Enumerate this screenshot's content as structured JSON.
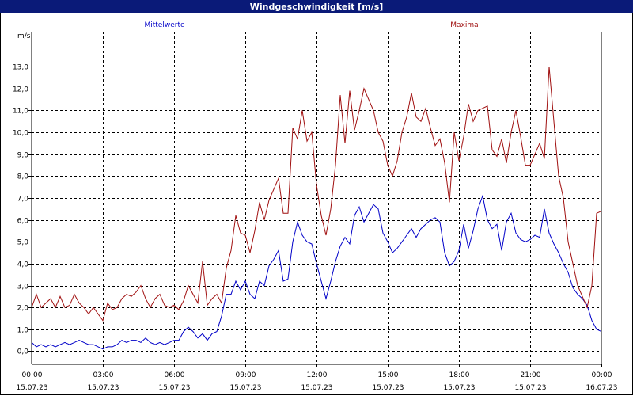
{
  "chart_data": {
    "type": "line",
    "title": "Windgeschwindigkeit [m/s]",
    "ylabel": "m/s",
    "ylim": [
      -0.6,
      14.6
    ],
    "xlim": [
      0,
      24
    ],
    "grid": true,
    "legend_position": "top",
    "y_ticks": [
      "0,0",
      "1,0",
      "2,0",
      "3,0",
      "4,0",
      "5,0",
      "6,0",
      "7,0",
      "8,0",
      "9,0",
      "10,0",
      "11,0",
      "12,0",
      "13,0"
    ],
    "y_tick_values": [
      0,
      1,
      2,
      3,
      4,
      5,
      6,
      7,
      8,
      9,
      10,
      11,
      12,
      13
    ],
    "x_ticks": [
      {
        "time": "00:00",
        "date": "15.07.23",
        "hour": 0
      },
      {
        "time": "03:00",
        "date": "15.07.23",
        "hour": 3
      },
      {
        "time": "06:00",
        "date": "15.07.23",
        "hour": 6
      },
      {
        "time": "09:00",
        "date": "15.07.23",
        "hour": 9
      },
      {
        "time": "12:00",
        "date": "15.07.23",
        "hour": 12
      },
      {
        "time": "15:00",
        "date": "15.07.23",
        "hour": 15
      },
      {
        "time": "18:00",
        "date": "15.07.23",
        "hour": 18
      },
      {
        "time": "21:00",
        "date": "15.07.23",
        "hour": 21
      },
      {
        "time": "00:00",
        "date": "16.07.23",
        "hour": 24
      }
    ],
    "series": [
      {
        "name": "Mittelwerte",
        "color": "#0000c8",
        "points": [
          [
            0.0,
            0.4
          ],
          [
            0.2,
            0.2
          ],
          [
            0.4,
            0.3
          ],
          [
            0.6,
            0.2
          ],
          [
            0.8,
            0.3
          ],
          [
            1.0,
            0.2
          ],
          [
            1.2,
            0.3
          ],
          [
            1.4,
            0.4
          ],
          [
            1.6,
            0.3
          ],
          [
            1.8,
            0.4
          ],
          [
            2.0,
            0.5
          ],
          [
            2.2,
            0.4
          ],
          [
            2.4,
            0.3
          ],
          [
            2.6,
            0.3
          ],
          [
            2.8,
            0.2
          ],
          [
            3.0,
            0.1
          ],
          [
            3.2,
            0.2
          ],
          [
            3.4,
            0.2
          ],
          [
            3.6,
            0.3
          ],
          [
            3.8,
            0.5
          ],
          [
            4.0,
            0.4
          ],
          [
            4.2,
            0.5
          ],
          [
            4.4,
            0.5
          ],
          [
            4.6,
            0.4
          ],
          [
            4.8,
            0.6
          ],
          [
            5.0,
            0.4
          ],
          [
            5.2,
            0.3
          ],
          [
            5.4,
            0.4
          ],
          [
            5.6,
            0.3
          ],
          [
            5.8,
            0.4
          ],
          [
            6.0,
            0.5
          ],
          [
            6.2,
            0.5
          ],
          [
            6.4,
            0.9
          ],
          [
            6.6,
            1.1
          ],
          [
            6.8,
            0.9
          ],
          [
            7.0,
            0.6
          ],
          [
            7.2,
            0.8
          ],
          [
            7.4,
            0.5
          ],
          [
            7.6,
            0.8
          ],
          [
            7.8,
            0.9
          ],
          [
            8.0,
            1.6
          ],
          [
            8.2,
            2.6
          ],
          [
            8.4,
            2.6
          ],
          [
            8.6,
            3.2
          ],
          [
            8.8,
            2.8
          ],
          [
            9.0,
            3.2
          ],
          [
            9.2,
            2.6
          ],
          [
            9.4,
            2.4
          ],
          [
            9.6,
            3.2
          ],
          [
            9.8,
            3.0
          ],
          [
            10.0,
            3.9
          ],
          [
            10.2,
            4.2
          ],
          [
            10.4,
            4.6
          ],
          [
            10.6,
            3.2
          ],
          [
            10.8,
            3.3
          ],
          [
            11.0,
            5.0
          ],
          [
            11.2,
            5.9
          ],
          [
            11.4,
            5.3
          ],
          [
            11.6,
            5.0
          ],
          [
            11.8,
            4.9
          ],
          [
            12.0,
            4.0
          ],
          [
            12.2,
            3.2
          ],
          [
            12.4,
            2.4
          ],
          [
            12.6,
            3.2
          ],
          [
            12.8,
            4.1
          ],
          [
            13.0,
            4.8
          ],
          [
            13.2,
            5.2
          ],
          [
            13.4,
            4.9
          ],
          [
            13.6,
            6.2
          ],
          [
            13.8,
            6.6
          ],
          [
            14.0,
            5.9
          ],
          [
            14.2,
            6.3
          ],
          [
            14.4,
            6.7
          ],
          [
            14.6,
            6.5
          ],
          [
            14.8,
            5.4
          ],
          [
            15.0,
            5.0
          ],
          [
            15.2,
            4.5
          ],
          [
            15.4,
            4.7
          ],
          [
            15.6,
            5.0
          ],
          [
            15.8,
            5.3
          ],
          [
            16.0,
            5.6
          ],
          [
            16.2,
            5.2
          ],
          [
            16.4,
            5.6
          ],
          [
            16.6,
            5.8
          ],
          [
            16.8,
            6.0
          ],
          [
            17.0,
            6.1
          ],
          [
            17.2,
            5.9
          ],
          [
            17.4,
            4.5
          ],
          [
            17.6,
            3.9
          ],
          [
            17.8,
            4.1
          ],
          [
            18.0,
            4.6
          ],
          [
            18.2,
            5.8
          ],
          [
            18.4,
            4.7
          ],
          [
            18.6,
            5.5
          ],
          [
            18.8,
            6.5
          ],
          [
            19.0,
            7.1
          ],
          [
            19.2,
            6.0
          ],
          [
            19.4,
            5.6
          ],
          [
            19.6,
            5.8
          ],
          [
            19.8,
            4.6
          ],
          [
            20.0,
            5.9
          ],
          [
            20.2,
            6.3
          ],
          [
            20.4,
            5.4
          ],
          [
            20.6,
            5.1
          ],
          [
            20.8,
            5.0
          ],
          [
            21.0,
            5.1
          ],
          [
            21.2,
            5.3
          ],
          [
            21.4,
            5.2
          ],
          [
            21.6,
            6.5
          ],
          [
            21.8,
            5.4
          ],
          [
            22.0,
            4.9
          ],
          [
            22.2,
            4.5
          ],
          [
            22.4,
            4.0
          ],
          [
            22.6,
            3.6
          ],
          [
            22.8,
            2.9
          ],
          [
            23.0,
            2.6
          ],
          [
            23.2,
            2.4
          ],
          [
            23.4,
            2.1
          ],
          [
            23.6,
            1.4
          ],
          [
            23.8,
            1.0
          ],
          [
            24.0,
            0.9
          ]
        ]
      },
      {
        "name": "Maxima",
        "color": "#a01010",
        "points": [
          [
            0.0,
            2.0
          ],
          [
            0.2,
            2.6
          ],
          [
            0.4,
            2.0
          ],
          [
            0.6,
            2.2
          ],
          [
            0.8,
            2.4
          ],
          [
            1.0,
            2.0
          ],
          [
            1.2,
            2.5
          ],
          [
            1.4,
            2.0
          ],
          [
            1.6,
            2.1
          ],
          [
            1.8,
            2.6
          ],
          [
            2.0,
            2.2
          ],
          [
            2.2,
            2.0
          ],
          [
            2.4,
            1.7
          ],
          [
            2.6,
            2.0
          ],
          [
            2.8,
            1.7
          ],
          [
            3.0,
            1.4
          ],
          [
            3.2,
            2.2
          ],
          [
            3.4,
            1.9
          ],
          [
            3.6,
            2.0
          ],
          [
            3.8,
            2.4
          ],
          [
            4.0,
            2.6
          ],
          [
            4.2,
            2.5
          ],
          [
            4.4,
            2.7
          ],
          [
            4.6,
            3.0
          ],
          [
            4.8,
            2.4
          ],
          [
            5.0,
            2.0
          ],
          [
            5.2,
            2.4
          ],
          [
            5.4,
            2.6
          ],
          [
            5.6,
            2.1
          ],
          [
            5.8,
            2.0
          ],
          [
            6.0,
            2.1
          ],
          [
            6.2,
            1.9
          ],
          [
            6.4,
            2.3
          ],
          [
            6.6,
            3.0
          ],
          [
            6.8,
            2.6
          ],
          [
            7.0,
            2.2
          ],
          [
            7.2,
            4.1
          ],
          [
            7.4,
            2.1
          ],
          [
            7.6,
            2.4
          ],
          [
            7.8,
            2.6
          ],
          [
            8.0,
            2.2
          ],
          [
            8.2,
            3.8
          ],
          [
            8.4,
            4.6
          ],
          [
            8.6,
            6.2
          ],
          [
            8.8,
            5.4
          ],
          [
            9.0,
            5.3
          ],
          [
            9.2,
            4.5
          ],
          [
            9.4,
            5.5
          ],
          [
            9.6,
            6.8
          ],
          [
            9.8,
            6.0
          ],
          [
            10.0,
            6.9
          ],
          [
            10.2,
            7.4
          ],
          [
            10.4,
            7.9
          ],
          [
            10.6,
            6.3
          ],
          [
            10.8,
            6.3
          ],
          [
            11.0,
            10.2
          ],
          [
            11.2,
            9.7
          ],
          [
            11.4,
            11.0
          ],
          [
            11.6,
            9.6
          ],
          [
            11.8,
            10.0
          ],
          [
            12.0,
            7.6
          ],
          [
            12.2,
            6.2
          ],
          [
            12.4,
            5.3
          ],
          [
            12.6,
            6.5
          ],
          [
            12.8,
            8.5
          ],
          [
            13.0,
            11.7
          ],
          [
            13.2,
            9.5
          ],
          [
            13.4,
            11.9
          ],
          [
            13.6,
            10.1
          ],
          [
            13.8,
            11.0
          ],
          [
            14.0,
            12.0
          ],
          [
            14.2,
            11.5
          ],
          [
            14.4,
            11.0
          ],
          [
            14.6,
            10.0
          ],
          [
            14.8,
            9.6
          ],
          [
            15.0,
            8.5
          ],
          [
            15.2,
            8.0
          ],
          [
            15.4,
            8.7
          ],
          [
            15.6,
            10.0
          ],
          [
            15.8,
            10.7
          ],
          [
            16.0,
            11.8
          ],
          [
            16.2,
            10.7
          ],
          [
            16.4,
            10.5
          ],
          [
            16.6,
            11.1
          ],
          [
            16.8,
            10.2
          ],
          [
            17.0,
            9.4
          ],
          [
            17.2,
            9.7
          ],
          [
            17.4,
            8.6
          ],
          [
            17.6,
            6.8
          ],
          [
            17.8,
            10.0
          ],
          [
            18.0,
            8.7
          ],
          [
            18.2,
            9.8
          ],
          [
            18.4,
            11.3
          ],
          [
            18.6,
            10.5
          ],
          [
            18.8,
            11.0
          ],
          [
            19.0,
            11.1
          ],
          [
            19.2,
            11.2
          ],
          [
            19.4,
            9.2
          ],
          [
            19.6,
            8.9
          ],
          [
            19.8,
            9.7
          ],
          [
            20.0,
            8.6
          ],
          [
            20.2,
            10.0
          ],
          [
            20.4,
            11.0
          ],
          [
            20.6,
            9.8
          ],
          [
            20.8,
            8.5
          ],
          [
            21.0,
            8.5
          ],
          [
            21.2,
            9.0
          ],
          [
            21.4,
            9.5
          ],
          [
            21.6,
            8.8
          ],
          [
            21.8,
            13.0
          ],
          [
            22.0,
            10.5
          ],
          [
            22.2,
            8.0
          ],
          [
            22.4,
            7.0
          ],
          [
            22.6,
            5.0
          ],
          [
            22.8,
            4.0
          ],
          [
            23.0,
            3.0
          ],
          [
            23.2,
            2.5
          ],
          [
            23.4,
            2.0
          ],
          [
            23.6,
            3.0
          ],
          [
            23.8,
            6.3
          ],
          [
            24.0,
            6.4
          ]
        ]
      }
    ]
  }
}
